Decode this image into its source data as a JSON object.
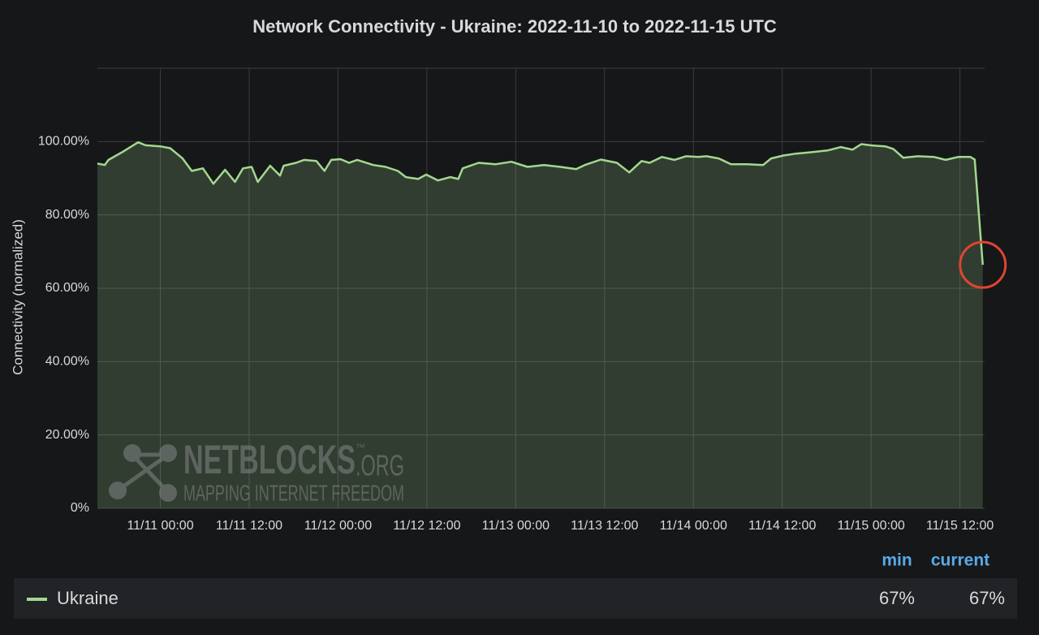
{
  "chart_data": {
    "type": "area",
    "title": "Network Connectivity - Ukraine: 2022-11-10 to 2022-11-15 UTC",
    "y_label": "Connectivity (normalized)",
    "x": [
      "11/10 15:30",
      "11/10 16:30",
      "11/10 17:00",
      "11/10 18:45",
      "11/10 21:00",
      "11/10 22:00",
      "11/11 00:00",
      "11/11 01:20",
      "11/11 03:00",
      "11/11 04:15",
      "11/11 05:45",
      "11/11 07:10",
      "11/11 08:45",
      "11/11 10:05",
      "11/11 11:10",
      "11/11 12:20",
      "11/11 13:10",
      "11/11 14:50",
      "11/11 16:10",
      "11/11 16:40",
      "11/11 18:20",
      "11/11 19:25",
      "11/11 21:05",
      "11/11 22:10",
      "11/11 23:05",
      "11/12 00:20",
      "11/12 01:30",
      "11/12 02:35",
      "11/12 04:45",
      "11/12 06:25",
      "11/12 08:05",
      "11/12 09:10",
      "11/12 10:50",
      "11/12 11:55",
      "11/12 13:30",
      "11/12 15:10",
      "11/12 16:15",
      "11/12 16:50",
      "11/12 19:00",
      "11/12 21:15",
      "11/12 23:25",
      "11/13 01:35",
      "11/13 03:50",
      "11/13 06:00",
      "11/13 08:10",
      "11/13 09:20",
      "11/13 11:30",
      "11/13 13:40",
      "11/13 15:20",
      "11/13 17:00",
      "11/13 18:05",
      "11/13 19:45",
      "11/13 21:25",
      "11/13 23:00",
      "11/14 00:40",
      "11/14 01:45",
      "11/14 03:25",
      "11/14 05:05",
      "11/14 07:15",
      "11/14 09:25",
      "11/14 10:30",
      "11/14 12:10",
      "11/14 13:50",
      "11/14 16:00",
      "11/14 18:10",
      "11/14 19:55",
      "11/14 21:30",
      "11/14 22:40",
      "11/15 00:15",
      "11/15 01:55",
      "11/15 03:00",
      "11/15 04:20",
      "11/15 06:20",
      "11/15 08:30",
      "11/15 10:05",
      "11/15 11:45",
      "11/15 13:25",
      "11/15 14:00",
      "11/15 15:05"
    ],
    "series": [
      {
        "name": "Ukraine",
        "color": "#a3d88f",
        "values": [
          94.0,
          93.6,
          95.0,
          97.0,
          99.8,
          99.0,
          98.7,
          98.2,
          95.4,
          92.0,
          92.7,
          88.5,
          92.3,
          89.0,
          92.7,
          93.1,
          89.0,
          93.4,
          90.7,
          93.4,
          94.2,
          95.0,
          94.7,
          92.0,
          95.0,
          95.2,
          94.2,
          95.0,
          93.6,
          93.1,
          92.0,
          90.3,
          89.8,
          91.0,
          89.4,
          90.3,
          89.8,
          92.7,
          94.2,
          93.8,
          94.5,
          93.1,
          93.6,
          93.1,
          92.5,
          93.6,
          95.1,
          94.2,
          91.6,
          94.7,
          94.2,
          95.8,
          95.0,
          96.0,
          95.8,
          96.0,
          95.4,
          93.8,
          93.8,
          93.6,
          95.4,
          96.2,
          96.7,
          97.1,
          97.6,
          98.5,
          97.8,
          99.3,
          98.9,
          98.7,
          98.0,
          95.6,
          96.0,
          95.8,
          95.0,
          95.8,
          95.8,
          95.1,
          66.4
        ]
      }
    ],
    "xlim": [
      "11/10 15:30",
      "11/15 15:20"
    ],
    "xticks": [
      "11/11 00:00",
      "11/11 12:00",
      "11/12 00:00",
      "11/12 12:00",
      "11/13 00:00",
      "11/13 12:00",
      "11/14 00:00",
      "11/14 12:00",
      "11/15 00:00",
      "11/15 12:00"
    ],
    "ylim": [
      0,
      120
    ],
    "yticks": [
      {
        "value": 0,
        "label": "0%"
      },
      {
        "value": 20,
        "label": "20.00%"
      },
      {
        "value": 40,
        "label": "40.00%"
      },
      {
        "value": 60,
        "label": "60.00%"
      },
      {
        "value": 80,
        "label": "80.00%"
      },
      {
        "value": 100,
        "label": "100.00%"
      }
    ],
    "grid": true,
    "legend_stats": [
      {
        "name": "min",
        "value": 67,
        "label": "67%"
      },
      {
        "name": "current",
        "value": 67,
        "label": "67%"
      }
    ],
    "watermark": {
      "brand": "NETBLOCKS",
      "tm": "™",
      "tld": ".ORG",
      "tagline": "MAPPING INTERNET FREEDOM"
    }
  }
}
